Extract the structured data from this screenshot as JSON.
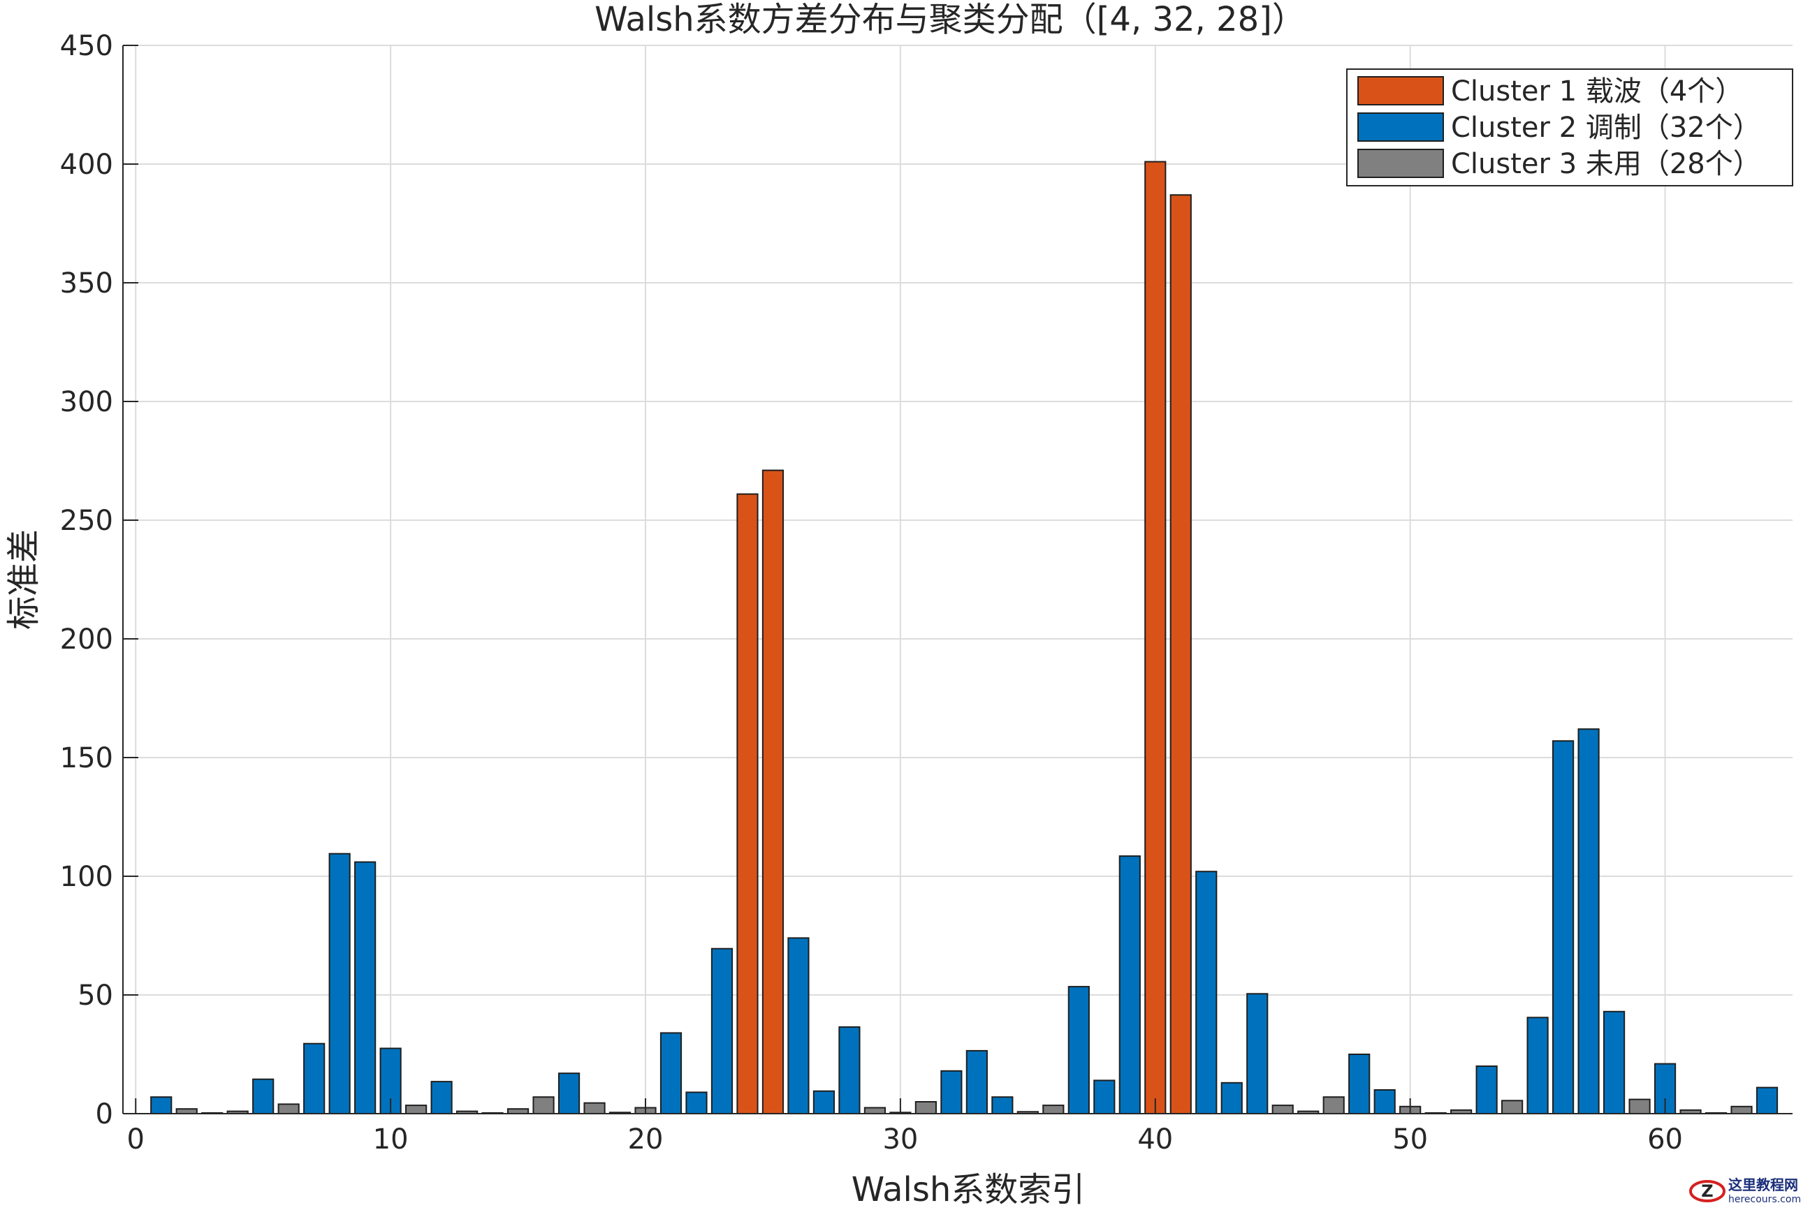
{
  "chart_data": {
    "type": "bar",
    "title": "Walsh系数方差分布与聚类分配（[4, 32, 28]）",
    "xlabel": "Walsh系数索引",
    "ylabel": "标准差",
    "xlim": [
      -0.5,
      65
    ],
    "ylim": [
      0,
      450
    ],
    "xticks": [
      "0",
      "10",
      "20",
      "30",
      "40",
      "50",
      "60"
    ],
    "yticks": [
      "0",
      "50",
      "100",
      "150",
      "200",
      "250",
      "300",
      "350",
      "400",
      "450"
    ],
    "grid": true,
    "legend_position": "top-right",
    "series": [
      {
        "name": "Cluster 1 载波（4个）",
        "color": "#d95319",
        "x": [
          24,
          25,
          40,
          41
        ],
        "values": [
          261,
          271,
          401,
          387
        ]
      },
      {
        "name": "Cluster 2 调制（32个）",
        "color": "#0072bd",
        "x": [
          1,
          5,
          7,
          8,
          9,
          10,
          12,
          17,
          21,
          22,
          23,
          26,
          27,
          28,
          32,
          33,
          34,
          37,
          38,
          39,
          42,
          43,
          44,
          48,
          49,
          53,
          55,
          56,
          57,
          58,
          60,
          64
        ],
        "values": [
          7,
          14.5,
          29.5,
          109.5,
          106,
          27.5,
          13.5,
          17,
          34,
          9,
          69.5,
          74,
          9.5,
          36.5,
          18,
          26.5,
          7,
          53.5,
          14,
          108.5,
          102,
          13,
          50.5,
          25,
          10,
          20,
          40.5,
          157,
          162,
          43,
          21,
          11
        ]
      },
      {
        "name": "Cluster 3 未用（28个）",
        "color": "#808080",
        "x": [
          2,
          3,
          4,
          6,
          11,
          13,
          14,
          15,
          16,
          18,
          19,
          20,
          29,
          30,
          31,
          35,
          36,
          45,
          46,
          47,
          50,
          51,
          52,
          54,
          59,
          61,
          62,
          63
        ],
        "values": [
          2,
          0.3,
          1,
          4,
          3.5,
          1,
          0.3,
          2,
          7,
          4.5,
          0.5,
          2.5,
          2.5,
          0.5,
          5,
          0.8,
          3.5,
          3.5,
          1,
          7,
          3,
          0.3,
          1.5,
          5.5,
          6,
          1.5,
          0.3,
          3
        ]
      }
    ]
  },
  "watermark": {
    "text": "这里教程网",
    "subtext": "herecours.com",
    "badge": "Z",
    "color": "#1a2e7a",
    "accent": "#d62020"
  }
}
